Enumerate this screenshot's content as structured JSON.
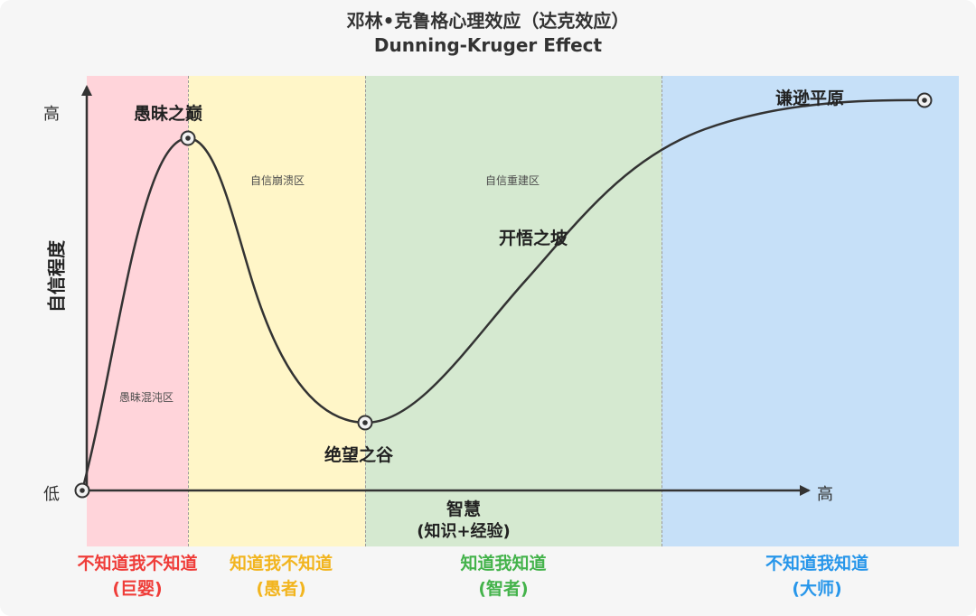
{
  "title": {
    "cn": "邓林•克鲁格心理效应（达克效应）",
    "en": "Dunning-Kruger Effect"
  },
  "axes": {
    "y_label": "自信程度",
    "y_high": "高",
    "y_low": "低",
    "x_main_label": "智慧",
    "x_sub_label": "(知识+经验)",
    "x_high": "高"
  },
  "zones": [
    {
      "inner_label": "愚昧混沌区",
      "bottom_label": "不知道我不知道",
      "bottom_sub": "(巨婴)",
      "color": "#ffd4da",
      "text_color": "#ef3d39"
    },
    {
      "inner_label": "自信崩溃区",
      "bottom_label": "知道我不知道",
      "bottom_sub": "(愚者)",
      "color": "#fff6c8",
      "text_color": "#f2b51f"
    },
    {
      "inner_label": "自信重建区",
      "bottom_label": "知道我知道",
      "bottom_sub": "(智者)",
      "color": "#d5e9d0",
      "text_color": "#44b34b"
    },
    {
      "inner_label": "",
      "bottom_label": "不知道我知道",
      "bottom_sub": "(大师)",
      "color": "#c6e0f8",
      "text_color": "#2796ea"
    }
  ],
  "points": {
    "peak": "愚昧之巅",
    "valley": "绝望之谷",
    "slope": "开悟之坡",
    "plateau": "谦逊平原"
  },
  "curve": {
    "stroke": "#333333",
    "point_fill": "#f2f2f2"
  }
}
